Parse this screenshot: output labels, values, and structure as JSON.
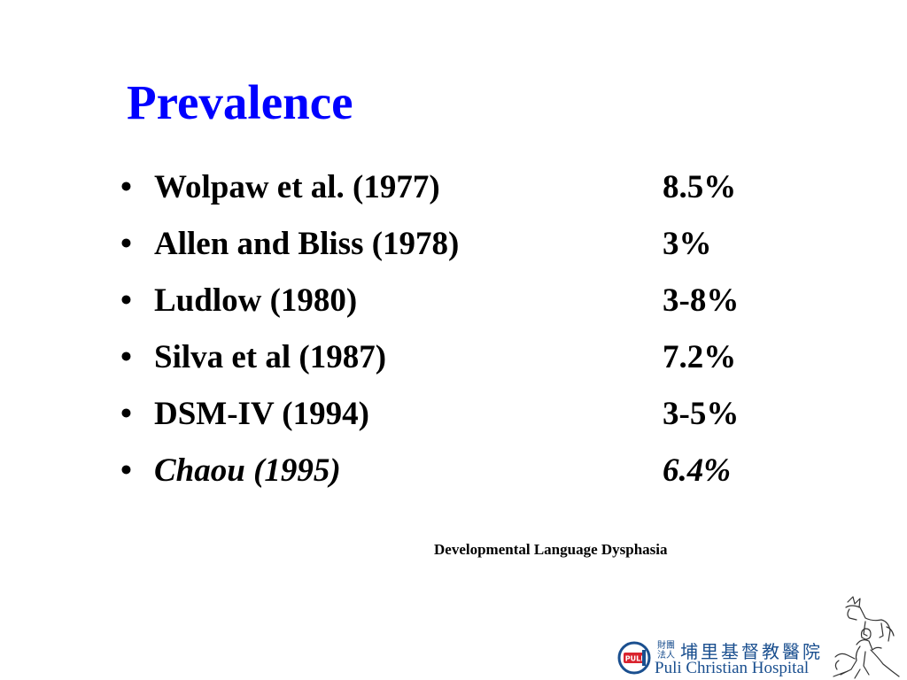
{
  "slide": {
    "title": "Prevalence",
    "bullet_char": "•",
    "bullets": [
      {
        "source": "Wolpaw et al. (1977)",
        "value": "8.5%"
      },
      {
        "source": "Allen and Bliss (1978)",
        "value": "3%"
      },
      {
        "source": "Ludlow (1980)",
        "value": "3-8%"
      },
      {
        "source": "Silva et al (1987)",
        "value": "7.2%"
      },
      {
        "source": "DSM-IV (1994)",
        "value": "3-5%"
      },
      {
        "source": "Chaou (1995)",
        "value": "6.4%"
      }
    ],
    "footnote": "Developmental Language Dysphasia"
  },
  "logo": {
    "emblem_text": "PULI",
    "small_chars": "財團法人",
    "chinese_name": "埔里基督教醫院",
    "english_name": "Puli Christian Hospital",
    "color": "#1a4f8f",
    "accent": "#d9232e"
  },
  "colors": {
    "title": "#0000ff",
    "text": "#000000",
    "background": "#ffffff"
  }
}
